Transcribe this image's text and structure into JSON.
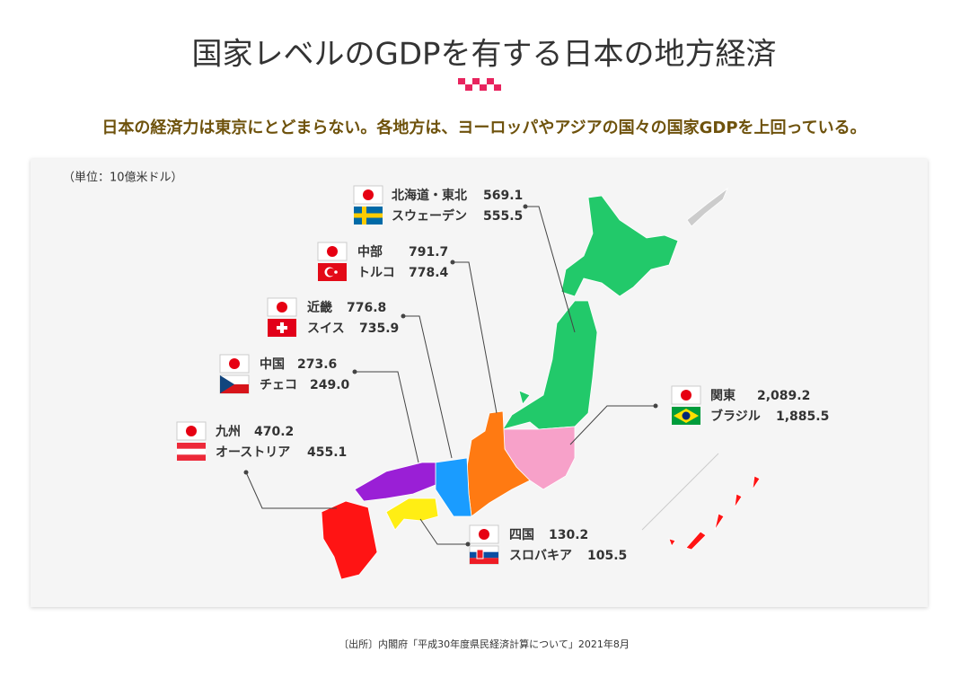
{
  "header": {
    "title": "国家レベルのGDPを有する日本の地方経済",
    "subtitle": "日本の経済力は東京にとどまらない。各地方は、ヨーロッパやアジアの国々の国家GDPを上回っている。"
  },
  "map": {
    "unit": "（単位：10億米ドル）",
    "regions": [
      {
        "region": "北海道・東北",
        "value": "569.1",
        "country": "スウェーデン",
        "country_value": "555.5"
      },
      {
        "region": "中部",
        "value": "791.7",
        "country": "トルコ",
        "country_value": "778.4"
      },
      {
        "region": "近畿",
        "value": "776.8",
        "country": "スイス",
        "country_value": "735.9"
      },
      {
        "region": "中国",
        "value": "273.6",
        "country": "チェコ",
        "country_value": "249.0"
      },
      {
        "region": "九州",
        "value": "470.2",
        "country": "オーストリア",
        "country_value": "455.1"
      },
      {
        "region": "関東",
        "value": "2,089.2",
        "country": "ブラジル",
        "country_value": "1,885.5"
      },
      {
        "region": "四国",
        "value": "130.2",
        "country": "スロバキア",
        "country_value": "105.5"
      }
    ]
  },
  "source": "〔出所〕内閣府「平成30年度県民経済計算について」2021年8月"
}
